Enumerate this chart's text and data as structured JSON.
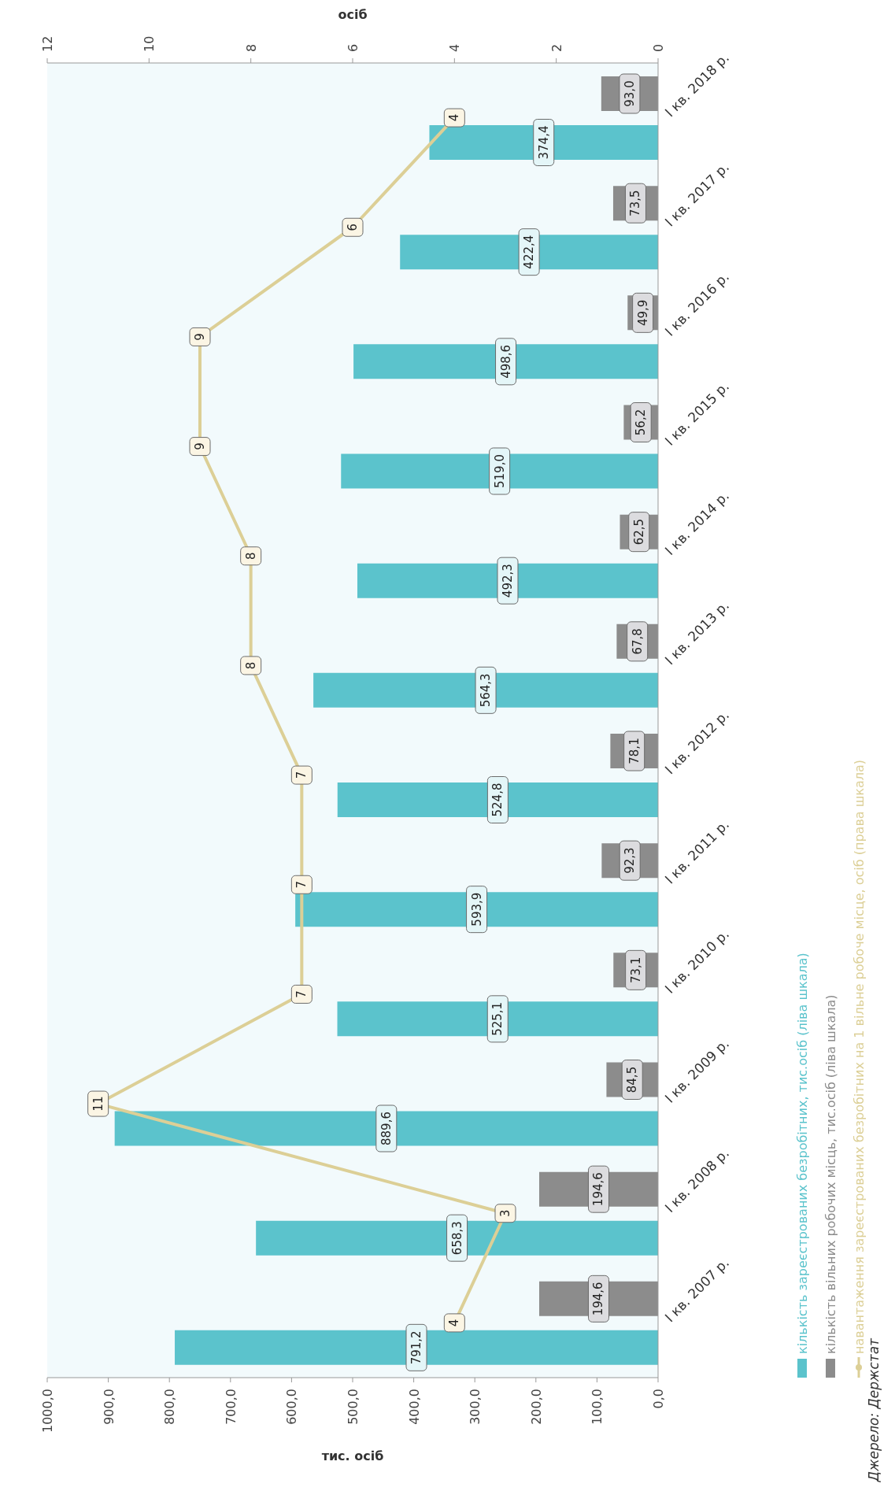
{
  "chart_data": {
    "type": "bar",
    "orientation": "horizontal",
    "xlabel": "тис. осіб",
    "x2label": "осіб",
    "categories": [
      "І кв. 2018 р.",
      "І кв. 2017 р.",
      "І кв. 2016 р.",
      "І кв. 2015 р.",
      "І кв. 2014 р.",
      "І кв. 2013 р.",
      "І кв. 2012 р.",
      "І кв. 2011 р.",
      "І кв. 2010 р.",
      "І кв. 2009 р.",
      "І кв. 2008 р.",
      "І кв. 2007 р."
    ],
    "series": [
      {
        "name": "кількість зареєстрованих безробітних, тис.осіб  (ліва шкала)",
        "color": "#5bc3cc",
        "values": [
          374.4,
          422.4,
          498.6,
          519.0,
          492.3,
          564.3,
          524.8,
          593.9,
          525.1,
          889.6,
          658.3,
          791.2
        ],
        "value_labels": [
          "374,4",
          "422,4",
          "498,6",
          "519,0",
          "492,3",
          "564,3",
          "524,8",
          "593,9",
          "525,1",
          "889,6",
          "658,3",
          "791,2"
        ]
      },
      {
        "name": "кількість вільних робочих місць, тис.осіб (ліва шкала)",
        "color": "#8c8c8c",
        "values": [
          93.0,
          73.5,
          49.9,
          56.2,
          62.5,
          67.8,
          78.1,
          92.3,
          73.1,
          84.5,
          194.6,
          194.6
        ],
        "value_labels": [
          "93,0",
          "73,5",
          "49,9",
          "56,2",
          "62,5",
          "67,8",
          "78,1",
          "92,3",
          "73,1",
          "84,5",
          "194,6",
          "194,6"
        ]
      },
      {
        "name": "навантаження зареєстрованих безробітних на 1 вільне робоче місце, осіб (права шкала)",
        "type": "line",
        "axis": "x2",
        "color": "#dccf96",
        "values": [
          4,
          6,
          9,
          9,
          8,
          8,
          7,
          7,
          7,
          11,
          3,
          4
        ],
        "value_labels": [
          "4",
          "6",
          "9",
          "9",
          "8",
          "8",
          "7",
          "7",
          "7",
          "11",
          "3",
          "4"
        ]
      }
    ],
    "xlim": [
      1000,
      0
    ],
    "xticks": [
      {
        "value": 1000,
        "label": "1000,0"
      },
      {
        "value": 900,
        "label": "900,0"
      },
      {
        "value": 800,
        "label": "800,0"
      },
      {
        "value": 700,
        "label": "700,0"
      },
      {
        "value": 600,
        "label": "600,0"
      },
      {
        "value": 500,
        "label": "500,0"
      },
      {
        "value": 400,
        "label": "400,0"
      },
      {
        "value": 300,
        "label": "300,0"
      },
      {
        "value": 200,
        "label": "200,0"
      },
      {
        "value": 100,
        "label": "100,0"
      },
      {
        "value": 0,
        "label": "0,0"
      }
    ],
    "x2lim": [
      12,
      0
    ],
    "x2ticks": [
      12,
      10,
      8,
      6,
      4,
      2,
      0
    ],
    "grid": false,
    "legend": "right",
    "marker": "circle",
    "line_style": "solid",
    "annotations": [
      "Джерело: Держстат"
    ]
  }
}
